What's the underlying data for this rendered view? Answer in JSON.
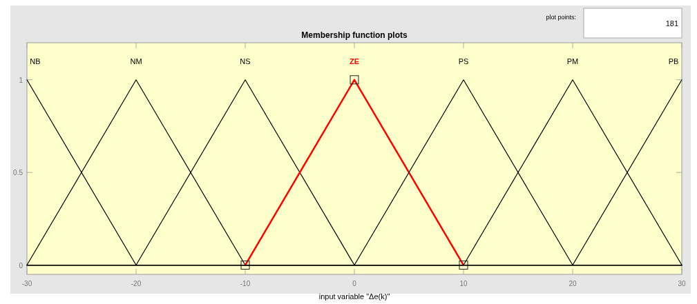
{
  "chart_data": {
    "type": "line",
    "title": "Membership function plots",
    "xlabel": "input variable \"Δe(k)\"",
    "annotations": [
      "plot points:",
      "181"
    ],
    "xlim": [
      -30,
      30
    ],
    "xticks": [
      -30,
      -20,
      -10,
      0,
      10,
      20,
      30
    ],
    "ylim": [
      -0.05,
      1.2
    ],
    "yticks": [
      0,
      0.5,
      1
    ],
    "grid": false,
    "line_style": "solid",
    "series": [
      {
        "name": "NB",
        "color": "#000000",
        "x": [
          -30,
          -20,
          30
        ],
        "values": [
          1,
          0,
          0
        ]
      },
      {
        "name": "NM",
        "color": "#000000",
        "x": [
          -30,
          -20,
          -10,
          30
        ],
        "values": [
          0,
          1,
          0,
          0
        ]
      },
      {
        "name": "NS",
        "color": "#000000",
        "x": [
          -30,
          -20,
          -10,
          0,
          30
        ],
        "values": [
          0,
          0,
          1,
          0,
          0
        ]
      },
      {
        "name": "ZE",
        "color": "#ff0000",
        "x": [
          -10,
          0,
          10
        ],
        "values": [
          0,
          1,
          0
        ],
        "marker": "square"
      },
      {
        "name": "PS",
        "color": "#000000",
        "x": [
          -30,
          0,
          10,
          20,
          30
        ],
        "values": [
          0,
          0,
          1,
          0,
          0
        ]
      },
      {
        "name": "PM",
        "color": "#000000",
        "x": [
          -30,
          10,
          20,
          30
        ],
        "values": [
          0,
          0,
          1,
          0
        ]
      },
      {
        "name": "PB",
        "color": "#000000",
        "x": [
          -30,
          20,
          30
        ],
        "values": [
          0,
          0,
          1
        ]
      }
    ]
  }
}
